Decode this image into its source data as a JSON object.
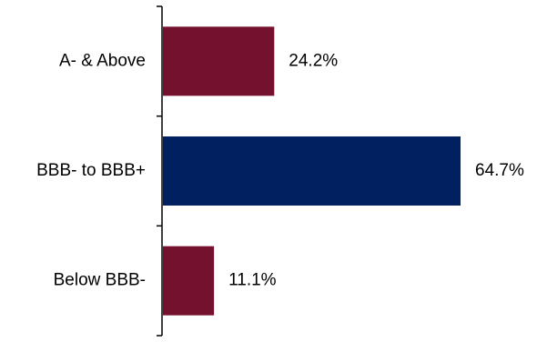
{
  "chart_data": {
    "type": "bar",
    "orientation": "horizontal",
    "categories": [
      "A- & Above",
      "BBB- to BBB+",
      "Below BBB-"
    ],
    "values": [
      24.2,
      64.7,
      11.1
    ],
    "value_labels": [
      "24.2%",
      "64.7%",
      "11.1%"
    ],
    "bar_colors": [
      "#74112f",
      "#002060",
      "#74112f"
    ],
    "title": "",
    "xlabel": "",
    "ylabel": "",
    "xlim": [
      0,
      70
    ],
    "grid": false,
    "legend": "none"
  }
}
